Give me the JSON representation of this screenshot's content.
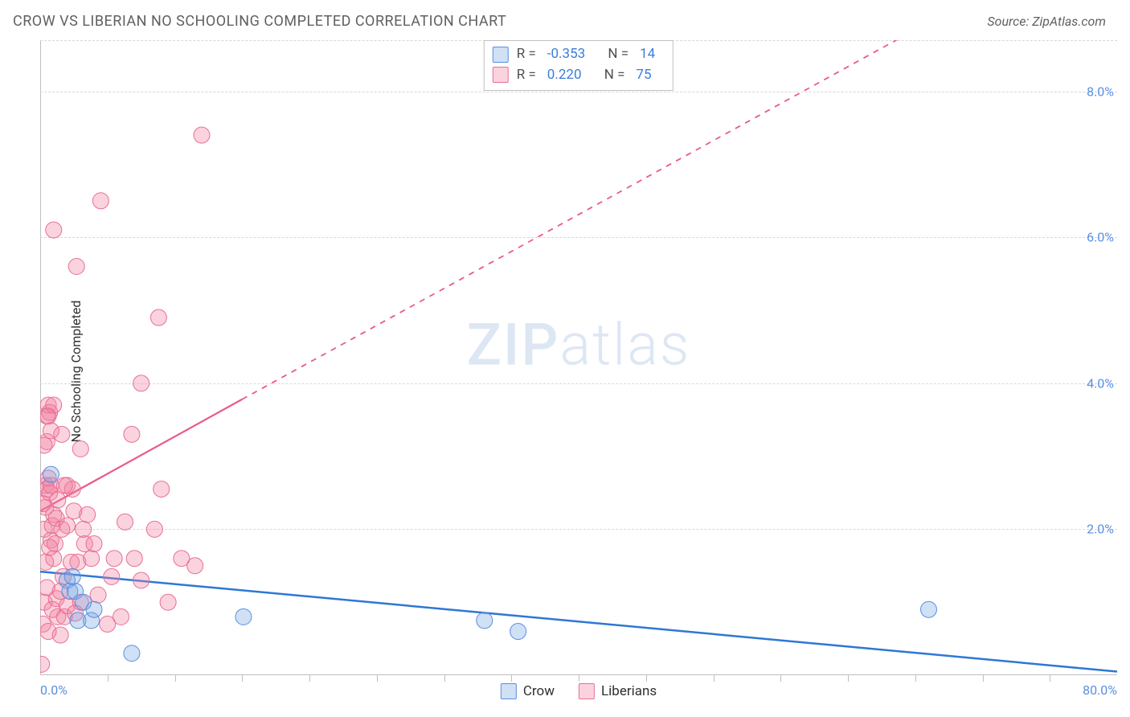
{
  "header": {
    "title": "CROW VS LIBERIAN NO SCHOOLING COMPLETED CORRELATION CHART",
    "source": "Source: ZipAtlas.com"
  },
  "watermark": {
    "part1": "ZIP",
    "part2": "atlas"
  },
  "chart": {
    "type": "scatter",
    "ylabel": "No Schooling Completed",
    "xlim": [
      0,
      80
    ],
    "ylim": [
      0,
      8.7
    ],
    "x_ticks_major": [
      0,
      80
    ],
    "x_ticks_major_labels": [
      "0.0%",
      "80.0%"
    ],
    "x_ticks_minor": [
      5,
      10,
      15,
      20,
      25,
      30,
      35,
      40,
      45,
      50,
      55,
      60,
      65,
      70,
      75
    ],
    "y_ticks": [
      2,
      4,
      6,
      8
    ],
    "y_ticks_labels": [
      "2.0%",
      "4.0%",
      "6.0%",
      "8.0%"
    ],
    "grid_y_at": [
      2,
      4,
      6,
      8,
      8.7
    ],
    "grid_color": "#d8d8d8",
    "axis_color": "#bfbfbf",
    "tick_label_color": "#5a8ee0",
    "ylabel_color": "#303030",
    "background_color": "#ffffff",
    "series": {
      "crow": {
        "label": "Crow",
        "fill": "rgba(120,165,225,0.35)",
        "stroke": "#5a8ee0",
        "marker_radius": 10,
        "R": "-0.353",
        "N": "14",
        "trend": {
          "x1": 0,
          "y1": 1.42,
          "x2": 80,
          "y2": 0.05,
          "color": "#2f77d4",
          "width": 2.5,
          "dash": "none"
        },
        "points": [
          [
            0.8,
            2.75
          ],
          [
            2.0,
            1.3
          ],
          [
            2.2,
            1.15
          ],
          [
            2.6,
            1.15
          ],
          [
            2.8,
            0.75
          ],
          [
            3.8,
            0.75
          ],
          [
            6.8,
            0.3
          ],
          [
            15.1,
            0.8
          ],
          [
            33.0,
            0.75
          ],
          [
            35.5,
            0.6
          ],
          [
            66.0,
            0.9
          ],
          [
            4.0,
            0.9
          ],
          [
            3.2,
            1.0
          ],
          [
            2.4,
            1.35
          ]
        ]
      },
      "liberians": {
        "label": "Liberians",
        "fill": "rgba(240,130,160,0.35)",
        "stroke": "#e86f95",
        "marker_radius": 10,
        "R": "0.220",
        "N": "75",
        "trend": {
          "x1": 0,
          "y1": 2.25,
          "x2": 15,
          "y2": 3.78,
          "x2_ext": 70.5,
          "y2_ext": 9.4,
          "color": "#ea5a87",
          "width": 2.2
        },
        "points": [
          [
            0.1,
            0.15
          ],
          [
            0.2,
            0.7
          ],
          [
            0.3,
            1.0
          ],
          [
            0.3,
            2.0
          ],
          [
            0.4,
            2.3
          ],
          [
            0.4,
            2.6
          ],
          [
            0.5,
            2.55
          ],
          [
            0.5,
            3.2
          ],
          [
            0.6,
            3.55
          ],
          [
            0.6,
            3.7
          ],
          [
            0.6,
            2.7
          ],
          [
            0.7,
            3.6
          ],
          [
            0.7,
            2.5
          ],
          [
            0.8,
            2.6
          ],
          [
            0.8,
            1.85
          ],
          [
            0.9,
            2.05
          ],
          [
            1.0,
            6.1
          ],
          [
            1.0,
            3.7
          ],
          [
            1.0,
            1.6
          ],
          [
            1.0,
            2.2
          ],
          [
            1.1,
            1.8
          ],
          [
            1.2,
            1.05
          ],
          [
            1.2,
            2.15
          ],
          [
            1.3,
            0.8
          ],
          [
            1.5,
            1.15
          ],
          [
            1.5,
            0.55
          ],
          [
            1.6,
            3.3
          ],
          [
            1.7,
            1.35
          ],
          [
            1.8,
            0.8
          ],
          [
            2.0,
            2.05
          ],
          [
            2.0,
            0.95
          ],
          [
            2.0,
            2.6
          ],
          [
            2.3,
            1.55
          ],
          [
            2.4,
            2.55
          ],
          [
            2.5,
            2.25
          ],
          [
            2.7,
            5.6
          ],
          [
            2.8,
            1.55
          ],
          [
            3.0,
            3.1
          ],
          [
            3.0,
            1.0
          ],
          [
            3.3,
            1.8
          ],
          [
            3.5,
            2.2
          ],
          [
            3.8,
            1.6
          ],
          [
            4.0,
            1.8
          ],
          [
            4.3,
            1.1
          ],
          [
            4.5,
            6.5
          ],
          [
            5.0,
            0.7
          ],
          [
            5.3,
            1.35
          ],
          [
            5.5,
            1.6
          ],
          [
            6.0,
            0.8
          ],
          [
            6.3,
            2.1
          ],
          [
            6.8,
            3.3
          ],
          [
            7.0,
            1.6
          ],
          [
            7.5,
            1.3
          ],
          [
            7.5,
            4.0
          ],
          [
            8.5,
            2.0
          ],
          [
            8.8,
            4.9
          ],
          [
            9.0,
            2.55
          ],
          [
            9.5,
            1.0
          ],
          [
            10.5,
            1.6
          ],
          [
            11.5,
            1.5
          ],
          [
            12.0,
            7.4
          ],
          [
            0.4,
            1.55
          ],
          [
            0.5,
            1.2
          ],
          [
            0.6,
            0.6
          ],
          [
            0.7,
            1.75
          ],
          [
            0.9,
            0.9
          ],
          [
            1.3,
            2.4
          ],
          [
            1.6,
            2.0
          ],
          [
            1.8,
            2.6
          ],
          [
            2.6,
            0.85
          ],
          [
            3.2,
            2.0
          ],
          [
            0.3,
            3.15
          ],
          [
            0.5,
            3.55
          ],
          [
            0.8,
            3.35
          ],
          [
            0.2,
            2.35
          ]
        ]
      }
    },
    "rn_box": {
      "label_R": "R =",
      "label_N": "N =",
      "value_color": "#3b7ddb"
    },
    "legend": {
      "items": [
        {
          "key": "crow",
          "label": "Crow"
        },
        {
          "key": "liberians",
          "label": "Liberians"
        }
      ]
    }
  }
}
